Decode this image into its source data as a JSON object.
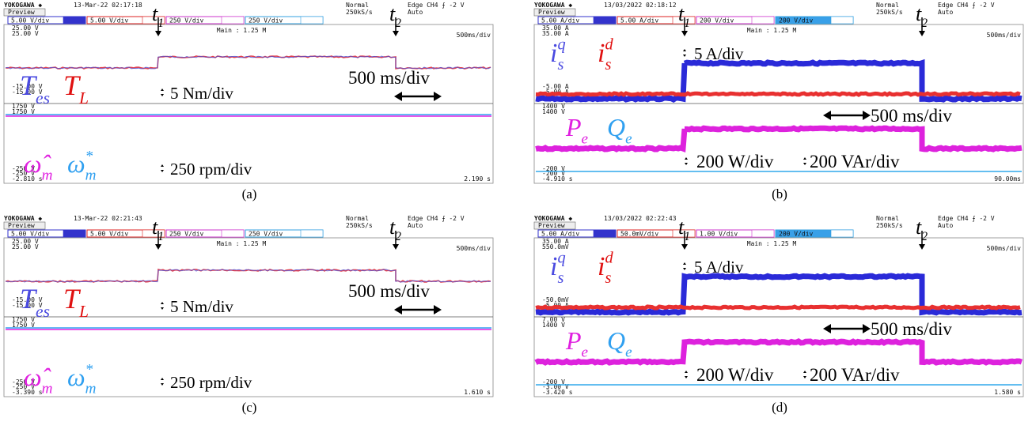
{
  "panels": [
    {
      "caption": "(a)",
      "variant": "torque",
      "header": {
        "brand": "YOKOGAWA ◆",
        "datetime": "13-Mar-22 02:17:18",
        "preview": "Preview",
        "mode": "Normal",
        "rate": "250kS/s",
        "trigger": "Edge CH4 ⨍ -2 V",
        "trigger_mode": "Auto"
      },
      "channels": [
        "5.00 V/div",
        "5.00 V/div",
        "250 V/div",
        "250 V/div"
      ],
      "main": "Main : 1.25 M",
      "timebase": "500ms/div",
      "levels": [
        "25.00 V",
        "25.00 V",
        "-15.00 V",
        "-15.00 V",
        "1750 V",
        "1750 V",
        "-250 V",
        "-250 V"
      ],
      "time_start": "-2.810 s",
      "time_end": "2.190 s",
      "annotations": {
        "t1": {
          "base": "t",
          "sub": "1"
        },
        "t2": {
          "base": "t",
          "sub": "2"
        },
        "sym1": {
          "base": "T",
          "sub": "es"
        },
        "sym2": {
          "base": "T",
          "sub": "L"
        },
        "scale1": "5 Nm/div",
        "time_scale": "500 ms/div",
        "sym3": {
          "base": "ω̂",
          "sub": "m"
        },
        "sym4": {
          "base": "ω",
          "sub": "m",
          "sup": "*"
        },
        "scale2": "250 rpm/div"
      }
    },
    {
      "caption": "(b)",
      "variant": "power",
      "header": {
        "brand": "YOKOGAWA ◆",
        "datetime": "13/03/2022 02:18:12",
        "preview": "Preview",
        "mode": "Normal",
        "rate": "250kS/s",
        "trigger": "Edge CH4 ⨍ -2 V",
        "trigger_mode": "Auto"
      },
      "channels": [
        "5.00 A/div",
        "5.00 A/div",
        "200 V/div",
        "200 V/div"
      ],
      "main": "Main : 1.25 M",
      "timebase": "500ms/div",
      "levels": [
        "35.00 A",
        "35.00 A",
        "-5.00 A",
        "-5.00 A",
        "1400 V",
        "1400 V",
        "-200 V",
        "-200 V"
      ],
      "time_start": "-4.910 s",
      "time_end": "90.00ms",
      "annotations": {
        "t1": {
          "base": "t",
          "sub": "1"
        },
        "t2": {
          "base": "t",
          "sub": "2"
        },
        "sym1": {
          "base": "i",
          "sub": "s",
          "sup": "q"
        },
        "sym2": {
          "base": "i",
          "sub": "s",
          "sup": "d"
        },
        "scale1": "5 A/div",
        "time_scale": "500 ms/div",
        "sym3": {
          "base": "P",
          "sub": "e"
        },
        "sym4": {
          "base": "Q",
          "sub": "e"
        },
        "scale2": "200 W/div",
        "scale3": "200 VAr/div"
      }
    },
    {
      "caption": "(c)",
      "variant": "torque",
      "header": {
        "brand": "YOKOGAWA ◆",
        "datetime": "13-Mar-22 02:21:43",
        "preview": "Preview",
        "mode": "Normal",
        "rate": "250kS/s",
        "trigger": "Edge CH4 ⨍ -2 V",
        "trigger_mode": "Auto"
      },
      "channels": [
        "5.00 V/div",
        "5.00 V/div",
        "250 V/div",
        "250 V/div"
      ],
      "main": "Main : 1.25 M",
      "timebase": "500ms/div",
      "levels": [
        "25.00 V",
        "25.00 V",
        "-15.00 V",
        "-15.00 V",
        "1750 V",
        "1750 V",
        "-250 V",
        "-250 V"
      ],
      "time_start": "-3.390 s",
      "time_end": "1.610 s",
      "annotations": {
        "t1": {
          "base": "t",
          "sub": "1"
        },
        "t2": {
          "base": "t",
          "sub": "2"
        },
        "sym1": {
          "base": "T",
          "sub": "es"
        },
        "sym2": {
          "base": "T",
          "sub": "L"
        },
        "scale1": "5 Nm/div",
        "time_scale": "500 ms/div",
        "sym3": {
          "base": "ω̂",
          "sub": "m"
        },
        "sym4": {
          "base": "ω",
          "sub": "m",
          "sup": "*"
        },
        "scale2": "250 rpm/div"
      }
    },
    {
      "caption": "(d)",
      "variant": "power",
      "header": {
        "brand": "YOKOGAWA ◆",
        "datetime": "13/03/2022 02:22:43",
        "preview": "Preview",
        "mode": "Normal",
        "rate": "250kS/s",
        "trigger": "Edge CH4 ⨍ -2 V",
        "trigger_mode": "Auto"
      },
      "channels": [
        "5.00 A/div",
        "50.0mV/div",
        "1.00 V/div",
        "200 V/div"
      ],
      "main": "Main : 1.25 M",
      "timebase": "500ms/div",
      "levels": [
        "35.00 A",
        "550.0mV",
        "-50.0mV",
        "-5.00 A",
        "7.00 V",
        "1400 V",
        "-200 V",
        "-3.00 V"
      ],
      "time_start": "-3.420 s",
      "time_end": "1.580 s",
      "annotations": {
        "t1": {
          "base": "t",
          "sub": "1"
        },
        "t2": {
          "base": "t",
          "sub": "2"
        },
        "sym1": {
          "base": "i",
          "sub": "s",
          "sup": "q"
        },
        "sym2": {
          "base": "i",
          "sub": "s",
          "sup": "d"
        },
        "scale1": "5 A/div",
        "time_scale": "500 ms/div",
        "sym3": {
          "base": "P",
          "sub": "e"
        },
        "sym4": {
          "base": "Q",
          "sub": "e"
        },
        "scale2": "200 W/div",
        "scale3": "200 VAr/div"
      }
    }
  ]
}
